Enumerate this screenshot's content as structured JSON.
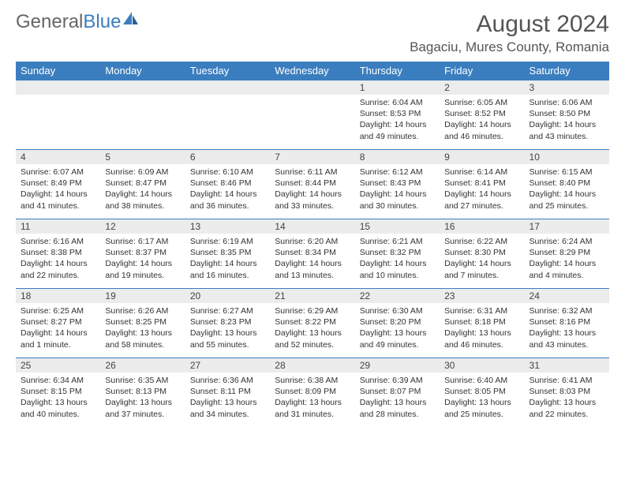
{
  "brand": {
    "part1": "General",
    "part2": "Blue"
  },
  "title": {
    "month": "August 2024",
    "location": "Bagaciu, Mures County, Romania"
  },
  "colors": {
    "accent": "#3a7ebf",
    "header_bg": "#3a7ebf",
    "daynum_bg": "#ececec",
    "text": "#333333"
  },
  "days_of_week": [
    "Sunday",
    "Monday",
    "Tuesday",
    "Wednesday",
    "Thursday",
    "Friday",
    "Saturday"
  ],
  "weeks": [
    [
      null,
      null,
      null,
      null,
      {
        "n": "1",
        "sr": "6:04 AM",
        "ss": "8:53 PM",
        "dl": "14 hours and 49 minutes."
      },
      {
        "n": "2",
        "sr": "6:05 AM",
        "ss": "8:52 PM",
        "dl": "14 hours and 46 minutes."
      },
      {
        "n": "3",
        "sr": "6:06 AM",
        "ss": "8:50 PM",
        "dl": "14 hours and 43 minutes."
      }
    ],
    [
      {
        "n": "4",
        "sr": "6:07 AM",
        "ss": "8:49 PM",
        "dl": "14 hours and 41 minutes."
      },
      {
        "n": "5",
        "sr": "6:09 AM",
        "ss": "8:47 PM",
        "dl": "14 hours and 38 minutes."
      },
      {
        "n": "6",
        "sr": "6:10 AM",
        "ss": "8:46 PM",
        "dl": "14 hours and 36 minutes."
      },
      {
        "n": "7",
        "sr": "6:11 AM",
        "ss": "8:44 PM",
        "dl": "14 hours and 33 minutes."
      },
      {
        "n": "8",
        "sr": "6:12 AM",
        "ss": "8:43 PM",
        "dl": "14 hours and 30 minutes."
      },
      {
        "n": "9",
        "sr": "6:14 AM",
        "ss": "8:41 PM",
        "dl": "14 hours and 27 minutes."
      },
      {
        "n": "10",
        "sr": "6:15 AM",
        "ss": "8:40 PM",
        "dl": "14 hours and 25 minutes."
      }
    ],
    [
      {
        "n": "11",
        "sr": "6:16 AM",
        "ss": "8:38 PM",
        "dl": "14 hours and 22 minutes."
      },
      {
        "n": "12",
        "sr": "6:17 AM",
        "ss": "8:37 PM",
        "dl": "14 hours and 19 minutes."
      },
      {
        "n": "13",
        "sr": "6:19 AM",
        "ss": "8:35 PM",
        "dl": "14 hours and 16 minutes."
      },
      {
        "n": "14",
        "sr": "6:20 AM",
        "ss": "8:34 PM",
        "dl": "14 hours and 13 minutes."
      },
      {
        "n": "15",
        "sr": "6:21 AM",
        "ss": "8:32 PM",
        "dl": "14 hours and 10 minutes."
      },
      {
        "n": "16",
        "sr": "6:22 AM",
        "ss": "8:30 PM",
        "dl": "14 hours and 7 minutes."
      },
      {
        "n": "17",
        "sr": "6:24 AM",
        "ss": "8:29 PM",
        "dl": "14 hours and 4 minutes."
      }
    ],
    [
      {
        "n": "18",
        "sr": "6:25 AM",
        "ss": "8:27 PM",
        "dl": "14 hours and 1 minute."
      },
      {
        "n": "19",
        "sr": "6:26 AM",
        "ss": "8:25 PM",
        "dl": "13 hours and 58 minutes."
      },
      {
        "n": "20",
        "sr": "6:27 AM",
        "ss": "8:23 PM",
        "dl": "13 hours and 55 minutes."
      },
      {
        "n": "21",
        "sr": "6:29 AM",
        "ss": "8:22 PM",
        "dl": "13 hours and 52 minutes."
      },
      {
        "n": "22",
        "sr": "6:30 AM",
        "ss": "8:20 PM",
        "dl": "13 hours and 49 minutes."
      },
      {
        "n": "23",
        "sr": "6:31 AM",
        "ss": "8:18 PM",
        "dl": "13 hours and 46 minutes."
      },
      {
        "n": "24",
        "sr": "6:32 AM",
        "ss": "8:16 PM",
        "dl": "13 hours and 43 minutes."
      }
    ],
    [
      {
        "n": "25",
        "sr": "6:34 AM",
        "ss": "8:15 PM",
        "dl": "13 hours and 40 minutes."
      },
      {
        "n": "26",
        "sr": "6:35 AM",
        "ss": "8:13 PM",
        "dl": "13 hours and 37 minutes."
      },
      {
        "n": "27",
        "sr": "6:36 AM",
        "ss": "8:11 PM",
        "dl": "13 hours and 34 minutes."
      },
      {
        "n": "28",
        "sr": "6:38 AM",
        "ss": "8:09 PM",
        "dl": "13 hours and 31 minutes."
      },
      {
        "n": "29",
        "sr": "6:39 AM",
        "ss": "8:07 PM",
        "dl": "13 hours and 28 minutes."
      },
      {
        "n": "30",
        "sr": "6:40 AM",
        "ss": "8:05 PM",
        "dl": "13 hours and 25 minutes."
      },
      {
        "n": "31",
        "sr": "6:41 AM",
        "ss": "8:03 PM",
        "dl": "13 hours and 22 minutes."
      }
    ]
  ],
  "labels": {
    "sunrise": "Sunrise:",
    "sunset": "Sunset:",
    "daylight": "Daylight:"
  }
}
